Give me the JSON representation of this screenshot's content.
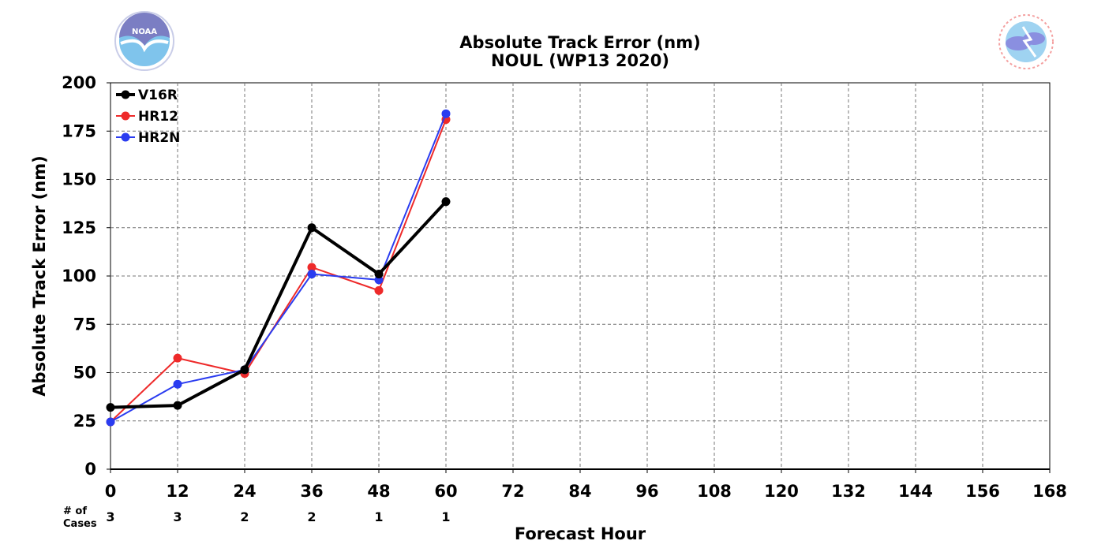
{
  "chart_data": {
    "type": "line",
    "title": "Absolute Track Error (nm)",
    "subtitle": "NOUL (WP13 2020)",
    "xlabel": "Forecast Hour",
    "ylabel": "Absolute Track Error (nm)",
    "xlim": [
      0,
      168
    ],
    "ylim": [
      0,
      200
    ],
    "xticks": [
      0,
      12,
      24,
      36,
      48,
      60,
      72,
      84,
      96,
      108,
      120,
      132,
      144,
      156,
      168
    ],
    "yticks": [
      0,
      25,
      50,
      75,
      100,
      125,
      150,
      175,
      200
    ],
    "grid": true,
    "legend_position": "top-left",
    "cases_label": [
      "# of",
      "Cases"
    ],
    "cases": [
      {
        "x": 0,
        "n": "3"
      },
      {
        "x": 12,
        "n": "3"
      },
      {
        "x": 24,
        "n": "2"
      },
      {
        "x": 36,
        "n": "2"
      },
      {
        "x": 48,
        "n": "1"
      },
      {
        "x": 60,
        "n": "1"
      }
    ],
    "series": [
      {
        "name": "V16R",
        "color": "#000000",
        "width": 4,
        "x": [
          0,
          12,
          24,
          36,
          48,
          60
        ],
        "y": [
          32,
          33,
          51.5,
          125,
          101,
          138.5
        ]
      },
      {
        "name": "HR12",
        "color": "#ee2a2a",
        "width": 2,
        "x": [
          0,
          12,
          24,
          36,
          48,
          60
        ],
        "y": [
          24.5,
          57.5,
          49.5,
          104.5,
          92.5,
          181
        ]
      },
      {
        "name": "HR2N",
        "color": "#2a3cf0",
        "width": 2,
        "x": [
          0,
          12,
          24,
          36,
          48,
          60
        ],
        "y": [
          24.5,
          44,
          51.5,
          101,
          98,
          184
        ]
      }
    ]
  },
  "logos": {
    "left_icon": "noaa-logo-icon",
    "left_text": "NOAA",
    "right_icon": "nws-logo-icon",
    "right_text": "NATIONAL WEATHER SERVICE"
  }
}
